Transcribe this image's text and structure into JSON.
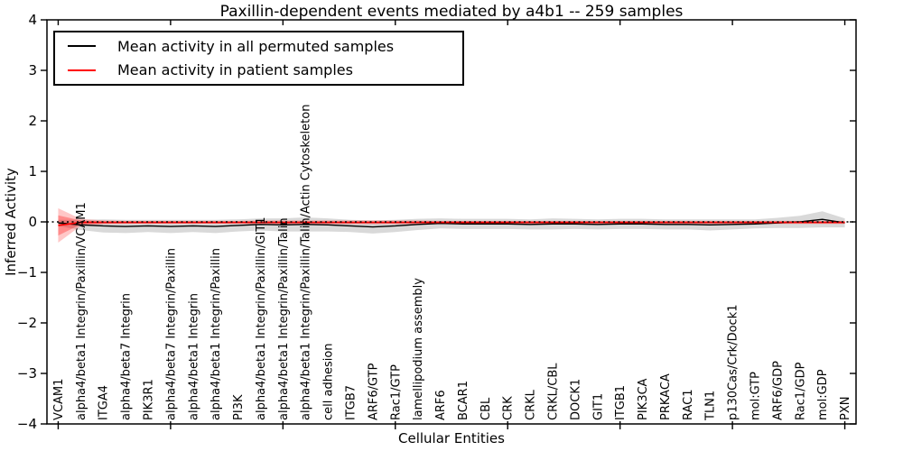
{
  "title": "Paxillin-dependent events mediated by a4b1 -- 259 samples",
  "axes": {
    "xlabel": "Cellular Entities",
    "ylabel": "Inferred Activity"
  },
  "legend": {
    "items": [
      {
        "label": "Mean activity in all permuted samples",
        "color": "#000000"
      },
      {
        "label": "Mean activity in patient samples",
        "color": "#ff0000"
      }
    ]
  },
  "colors": {
    "permuted_line": "#000000",
    "patient_line": "#ff0000",
    "permuted_band": "rgba(120,120,120,0.28)",
    "patient_band_outer": "rgba(255,0,0,0.22)",
    "patient_band_inner": "rgba(255,0,0,0.30)",
    "zero_line": "#000000",
    "spine": "#000000"
  },
  "chart_data": {
    "type": "line",
    "title": "Paxillin-dependent events mediated by a4b1 -- 259 samples",
    "xlabel": "Cellular Entities",
    "ylabel": "Inferred Activity",
    "ylim": [
      -4,
      4
    ],
    "yticks": [
      -4,
      -3,
      -2,
      -1,
      0,
      1,
      2,
      3,
      4
    ],
    "grid": false,
    "legend_position": "upper left",
    "zero_reference_line": 0,
    "categories": [
      "VCAM1",
      "alpha4/beta1 Integrin/Paxillin/VCAM1",
      "ITGA4",
      "alpha4/beta7 Integrin",
      "PIK3R1",
      "alpha4/beta7 Integrin/Paxillin",
      "alpha4/beta1 Integrin",
      "alpha4/beta1 Integrin/Paxillin",
      "PI3K",
      "alpha4/beta1 Integrin/Paxillin/GIT1",
      "alpha4/beta1 Integrin/Paxillin/Talin",
      "alpha4/beta1 Integrin/Paxillin/Talin/Actin Cytoskeleton",
      "cell adhesion",
      "ITGB7",
      "ARF6/GTP",
      "Rac1/GTP",
      "lamellipodium assembly",
      "ARF6",
      "BCAR1",
      "CBL",
      "CRK",
      "CRKL",
      "CRKL/CBL",
      "DOCK1",
      "GIT1",
      "ITGB1",
      "PIK3CA",
      "PRKACA",
      "RAC1",
      "TLN1",
      "p130Cas/Crk/Dock1",
      "mol:GTP",
      "ARF6/GDP",
      "Rac1/GDP",
      "mol:GDP",
      "PXN"
    ],
    "series": [
      {
        "name": "Mean activity in all permuted samples",
        "color": "#000000",
        "values": [
          -0.02,
          -0.06,
          -0.08,
          -0.09,
          -0.08,
          -0.09,
          -0.08,
          -0.09,
          -0.07,
          -0.05,
          -0.06,
          -0.05,
          -0.06,
          -0.08,
          -0.1,
          -0.08,
          -0.05,
          -0.03,
          -0.04,
          -0.04,
          -0.04,
          -0.05,
          -0.04,
          -0.04,
          -0.05,
          -0.04,
          -0.04,
          -0.05,
          -0.05,
          -0.06,
          -0.05,
          -0.04,
          -0.02,
          0.0,
          0.05,
          -0.02
        ],
        "band_halfwidth": [
          0.06,
          0.1,
          0.13,
          0.13,
          0.12,
          0.13,
          0.12,
          0.13,
          0.12,
          0.12,
          0.13,
          0.14,
          0.13,
          0.12,
          0.13,
          0.12,
          0.11,
          0.1,
          0.1,
          0.1,
          0.1,
          0.1,
          0.11,
          0.1,
          0.1,
          0.1,
          0.1,
          0.1,
          0.1,
          0.11,
          0.1,
          0.09,
          0.1,
          0.12,
          0.16,
          0.09
        ]
      },
      {
        "name": "Mean activity in patient samples",
        "color": "#ff0000",
        "values": [
          -0.07,
          -0.01,
          -0.01,
          -0.01,
          -0.01,
          -0.01,
          -0.01,
          -0.01,
          -0.01,
          -0.01,
          -0.01,
          -0.01,
          -0.01,
          -0.01,
          -0.01,
          -0.01,
          -0.01,
          -0.01,
          -0.01,
          -0.01,
          -0.01,
          -0.01,
          -0.01,
          -0.01,
          -0.01,
          -0.01,
          -0.01,
          -0.01,
          -0.01,
          -0.01,
          -0.01,
          -0.01,
          -0.01,
          -0.01,
          -0.01,
          -0.01
        ],
        "band_halfwidth": [
          0.34,
          0.07,
          0.04,
          0.03,
          0.03,
          0.03,
          0.03,
          0.03,
          0.03,
          0.04,
          0.04,
          0.04,
          0.04,
          0.04,
          0.04,
          0.04,
          0.04,
          0.03,
          0.03,
          0.03,
          0.03,
          0.03,
          0.03,
          0.03,
          0.03,
          0.03,
          0.03,
          0.03,
          0.03,
          0.03,
          0.03,
          0.03,
          0.03,
          0.03,
          0.03,
          0.03
        ],
        "band_inner_halfwidth": [
          0.2,
          0.04,
          0.02,
          0.02,
          0.02,
          0.02,
          0.02,
          0.02,
          0.02,
          0.02,
          0.02,
          0.02,
          0.02,
          0.02,
          0.02,
          0.02,
          0.02,
          0.02,
          0.02,
          0.02,
          0.02,
          0.02,
          0.02,
          0.02,
          0.02,
          0.02,
          0.02,
          0.02,
          0.02,
          0.02,
          0.02,
          0.02,
          0.02,
          0.02,
          0.02,
          0.02
        ]
      }
    ]
  }
}
